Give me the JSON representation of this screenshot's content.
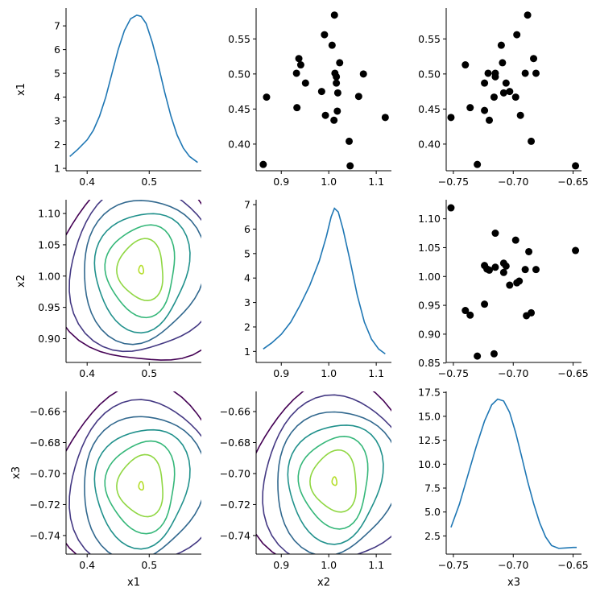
{
  "chart_data": [
    {
      "type": "line",
      "row": 0,
      "col": 0,
      "ylabel": "x1",
      "xlabel": "",
      "xlim": [
        0.366,
        0.584
      ],
      "ylim": [
        0.9,
        7.75
      ],
      "xticks": [
        0.4,
        0.5
      ],
      "yticks": [
        1,
        2,
        3,
        4,
        5,
        6,
        7
      ],
      "color": "#1f77b4",
      "x": [
        0.372,
        0.385,
        0.4,
        0.41,
        0.42,
        0.43,
        0.44,
        0.45,
        0.46,
        0.47,
        0.48,
        0.487,
        0.495,
        0.505,
        0.515,
        0.525,
        0.535,
        0.545,
        0.555,
        0.565,
        0.578
      ],
      "y": [
        1.5,
        1.8,
        2.2,
        2.6,
        3.2,
        4.0,
        5.0,
        6.0,
        6.8,
        7.3,
        7.45,
        7.4,
        7.1,
        6.3,
        5.3,
        4.2,
        3.2,
        2.4,
        1.85,
        1.5,
        1.25
      ]
    },
    {
      "type": "scatter",
      "row": 0,
      "col": 1,
      "xlim": [
        0.847,
        1.132
      ],
      "ylim": [
        0.362,
        0.594
      ],
      "xticks": [
        0.9,
        1.0,
        1.1
      ],
      "yticks": [
        0.4,
        0.45,
        0.5,
        0.55
      ],
      "color": "#000000",
      "points": [
        [
          0.862,
          0.371
        ],
        [
          0.869,
          0.467
        ],
        [
          0.933,
          0.452
        ],
        [
          0.932,
          0.501
        ],
        [
          0.937,
          0.522
        ],
        [
          0.941,
          0.513
        ],
        [
          0.951,
          0.487
        ],
        [
          0.985,
          0.475
        ],
        [
          0.991,
          0.556
        ],
        [
          0.993,
          0.441
        ],
        [
          1.007,
          0.541
        ],
        [
          1.012,
          0.584
        ],
        [
          1.011,
          0.434
        ],
        [
          1.013,
          0.501
        ],
        [
          1.016,
          0.496
        ],
        [
          1.016,
          0.487
        ],
        [
          1.018,
          0.447
        ],
        [
          1.019,
          0.473
        ],
        [
          1.023,
          0.516
        ],
        [
          1.043,
          0.404
        ],
        [
          1.045,
          0.369
        ],
        [
          1.063,
          0.468
        ],
        [
          1.073,
          0.5
        ],
        [
          1.119,
          0.438
        ]
      ]
    },
    {
      "type": "scatter",
      "row": 0,
      "col": 2,
      "xlim": [
        -0.756,
        -0.643
      ],
      "ylim": [
        0.362,
        0.594
      ],
      "xticks": [
        -0.75,
        -0.7,
        -0.65
      ],
      "yticks": [
        0.4,
        0.45,
        0.5,
        0.55
      ],
      "color": "#000000",
      "points": [
        [
          -0.752,
          0.438
        ],
        [
          -0.74,
          0.513
        ],
        [
          -0.736,
          0.452
        ],
        [
          -0.73,
          0.371
        ],
        [
          -0.724,
          0.487
        ],
        [
          -0.724,
          0.448
        ],
        [
          -0.721,
          0.501
        ],
        [
          -0.72,
          0.434
        ],
        [
          -0.716,
          0.467
        ],
        [
          -0.715,
          0.501
        ],
        [
          -0.715,
          0.496
        ],
        [
          -0.71,
          0.541
        ],
        [
          -0.709,
          0.516
        ],
        [
          -0.708,
          0.473
        ],
        [
          -0.706,
          0.487
        ],
        [
          -0.703,
          0.475
        ],
        [
          -0.698,
          0.467
        ],
        [
          -0.697,
          0.556
        ],
        [
          -0.694,
          0.441
        ],
        [
          -0.69,
          0.501
        ],
        [
          -0.688,
          0.584
        ],
        [
          -0.685,
          0.404
        ],
        [
          -0.683,
          0.522
        ],
        [
          -0.681,
          0.501
        ],
        [
          -0.648,
          0.369
        ]
      ]
    },
    {
      "type": "contour",
      "row": 1,
      "col": 0,
      "ylabel": "x2",
      "xlabel": "",
      "xlim": [
        0.366,
        0.584
      ],
      "ylim": [
        0.862,
        1.122
      ],
      "xticks": [
        0.4,
        0.5
      ],
      "yticks": [
        0.9,
        0.95,
        1.0,
        1.05,
        1.1
      ],
      "center": [
        0.487,
        1.01
      ],
      "levels": 7,
      "colors": [
        "#440154",
        "#443983",
        "#31688e",
        "#21918c",
        "#35b779",
        "#90d743",
        "#b5de2b"
      ]
    },
    {
      "type": "line",
      "row": 1,
      "col": 1,
      "xlim": [
        0.847,
        1.132
      ],
      "ylim": [
        0.55,
        7.2
      ],
      "xticks": [
        0.9,
        1.0,
        1.1
      ],
      "yticks": [
        1,
        2,
        3,
        4,
        5,
        6,
        7
      ],
      "color": "#1f77b4",
      "x": [
        0.862,
        0.88,
        0.9,
        0.92,
        0.94,
        0.96,
        0.98,
        0.995,
        1.005,
        1.012,
        1.02,
        1.03,
        1.045,
        1.06,
        1.075,
        1.09,
        1.105,
        1.119
      ],
      "y": [
        1.1,
        1.35,
        1.7,
        2.2,
        2.9,
        3.7,
        4.7,
        5.7,
        6.5,
        6.85,
        6.7,
        6.0,
        4.7,
        3.3,
        2.2,
        1.5,
        1.1,
        0.9
      ]
    },
    {
      "type": "scatter",
      "row": 1,
      "col": 2,
      "xlim": [
        -0.756,
        -0.643
      ],
      "ylim": [
        0.851,
        1.133
      ],
      "xticks": [
        -0.75,
        -0.7,
        -0.65
      ],
      "yticks": [
        0.85,
        0.9,
        0.95,
        1.0,
        1.05,
        1.1
      ],
      "color": "#000000",
      "points": [
        [
          -0.752,
          1.119
        ],
        [
          -0.74,
          0.941
        ],
        [
          -0.736,
          0.933
        ],
        [
          -0.73,
          0.862
        ],
        [
          -0.724,
          0.952
        ],
        [
          -0.724,
          1.019
        ],
        [
          -0.722,
          1.013
        ],
        [
          -0.72,
          1.011
        ],
        [
          -0.716,
          0.866
        ],
        [
          -0.715,
          1.075
        ],
        [
          -0.715,
          1.016
        ],
        [
          -0.708,
          1.023
        ],
        [
          -0.708,
          1.007
        ],
        [
          -0.706,
          1.018
        ],
        [
          -0.703,
          0.985
        ],
        [
          -0.698,
          1.063
        ],
        [
          -0.697,
          0.989
        ],
        [
          -0.695,
          0.992
        ],
        [
          -0.69,
          1.012
        ],
        [
          -0.689,
          0.932
        ],
        [
          -0.687,
          1.043
        ],
        [
          -0.685,
          0.937
        ],
        [
          -0.681,
          1.012
        ],
        [
          -0.648,
          1.045
        ]
      ]
    },
    {
      "type": "contour",
      "row": 2,
      "col": 0,
      "ylabel": "x3",
      "xlabel": "x1",
      "xlim": [
        0.366,
        0.584
      ],
      "ylim": [
        -0.752,
        -0.647
      ],
      "xticks": [
        0.4,
        0.5
      ],
      "yticks": [
        -0.74,
        -0.72,
        -0.7,
        -0.68,
        -0.66
      ],
      "center": [
        0.487,
        -0.708
      ],
      "levels": 7,
      "colors": [
        "#440154",
        "#443983",
        "#31688e",
        "#21918c",
        "#35b779",
        "#90d743",
        "#b5de2b"
      ]
    },
    {
      "type": "contour",
      "row": 2,
      "col": 1,
      "xlabel": "x2",
      "xlim": [
        0.847,
        1.132
      ],
      "ylim": [
        -0.752,
        -0.647
      ],
      "xticks": [
        0.9,
        1.0,
        1.1
      ],
      "yticks": [
        -0.74,
        -0.72,
        -0.7,
        -0.68,
        -0.66
      ],
      "center": [
        1.012,
        -0.705
      ],
      "levels": 7,
      "colors": [
        "#440154",
        "#443983",
        "#31688e",
        "#21918c",
        "#35b779",
        "#90d743",
        "#b5de2b"
      ]
    },
    {
      "type": "line",
      "row": 2,
      "col": 2,
      "xlabel": "x3",
      "xlim": [
        -0.756,
        -0.643
      ],
      "ylim": [
        0.6,
        17.6
      ],
      "xticks": [
        -0.75,
        -0.7,
        -0.65
      ],
      "yticks": [
        2.5,
        5.0,
        7.5,
        10.0,
        12.5,
        15.0,
        17.5
      ],
      "color": "#1f77b4",
      "x": [
        -0.752,
        -0.745,
        -0.738,
        -0.731,
        -0.724,
        -0.718,
        -0.713,
        -0.708,
        -0.703,
        -0.698,
        -0.693,
        -0.688,
        -0.683,
        -0.678,
        -0.673,
        -0.668,
        -0.662,
        -0.656,
        -0.65,
        -0.647
      ],
      "y": [
        3.4,
        5.8,
        8.8,
        11.8,
        14.5,
        16.2,
        16.8,
        16.6,
        15.4,
        13.3,
        10.8,
        8.2,
        5.9,
        3.9,
        2.4,
        1.5,
        1.2,
        1.25,
        1.3,
        1.3
      ]
    }
  ]
}
